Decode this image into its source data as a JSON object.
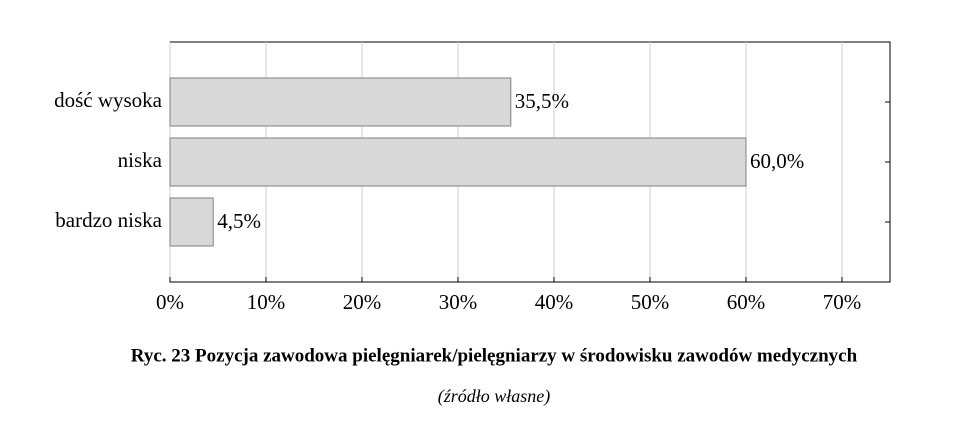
{
  "chart_data": {
    "type": "bar",
    "orientation": "horizontal",
    "title": "Ryc. 23 Pozycja zawodowa pielęgniarek/pielęgniarzy w środowisku zawodów medycznych",
    "subtitle": "(źródło własne)",
    "categories": [
      "dość wysoka",
      "niska",
      "bardzo niska"
    ],
    "values": [
      35.5,
      60.0,
      4.5
    ],
    "value_labels": [
      "35,5%",
      "60,0%",
      "4,5%"
    ],
    "color": "#d9d9d9",
    "xlim": [
      0,
      75
    ],
    "xticks": [
      {
        "value": 0,
        "label": "0%"
      },
      {
        "value": 10,
        "label": "10%"
      },
      {
        "value": 20,
        "label": "20%"
      },
      {
        "value": 30,
        "label": "30%"
      },
      {
        "value": 40,
        "label": "40%"
      },
      {
        "value": 50,
        "label": "50%"
      },
      {
        "value": 60,
        "label": "60%"
      },
      {
        "value": 70,
        "label": "70%"
      }
    ],
    "grid": true
  }
}
